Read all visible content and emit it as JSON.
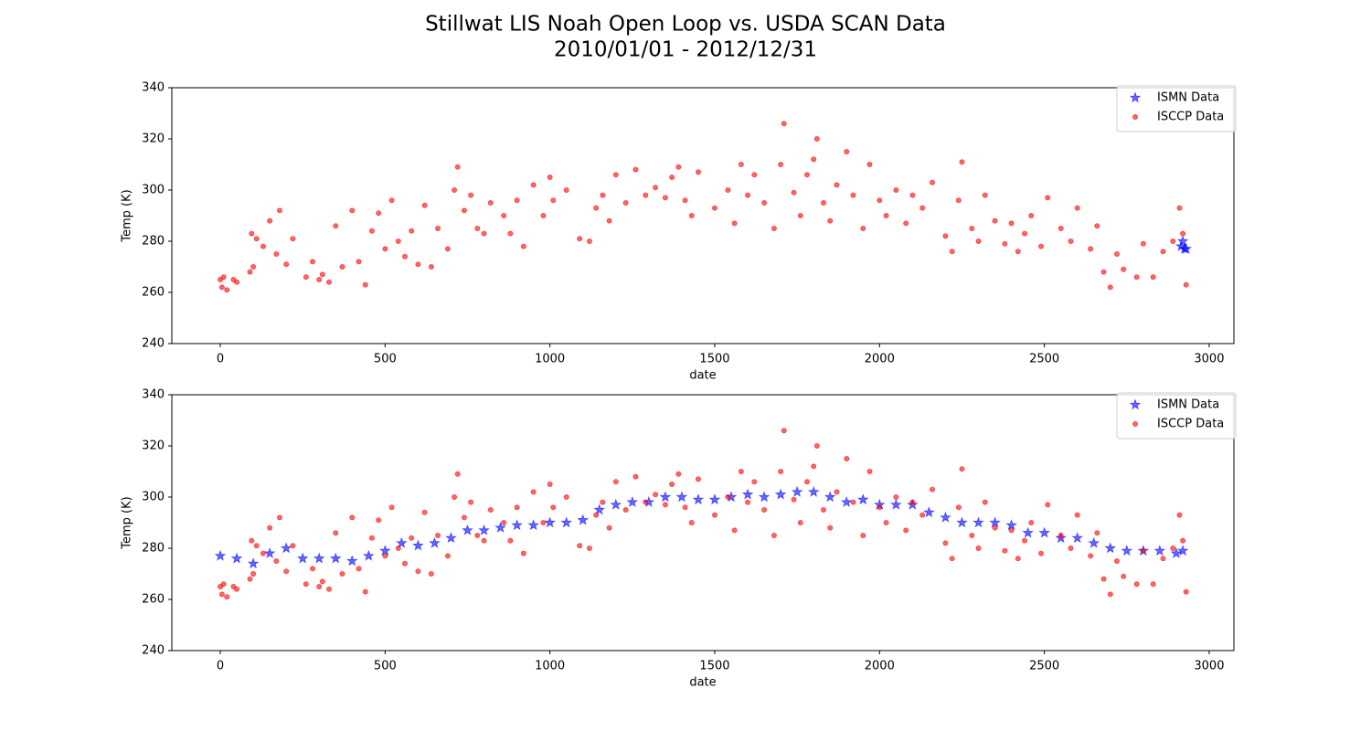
{
  "figure": {
    "title": "Stillwat LIS Noah Open Loop vs. USDA SCAN Data",
    "subtitle": "2010/01/01 - 2012/12/31"
  },
  "chart_data": [
    {
      "type": "scatter",
      "xlabel": "date",
      "ylabel": "Temp (K)",
      "xlim": [
        -147,
        3075
      ],
      "ylim": [
        240,
        340
      ],
      "xticks": [
        0,
        500,
        1000,
        1500,
        2000,
        2500,
        3000
      ],
      "yticks": [
        240,
        260,
        280,
        300,
        320,
        340
      ],
      "legend": "upper right",
      "series": [
        {
          "name": "ISMN Data",
          "color": "#0000ff",
          "alpha": 0.6,
          "marker": "star",
          "x": [
            2915,
            2920,
            2925,
            2930
          ],
          "values": [
            278,
            280,
            277,
            277
          ]
        },
        {
          "name": "ISCCP Data",
          "color": "#ff0000",
          "alpha": 0.6,
          "marker": "circle",
          "x": [
            0,
            5,
            10,
            20,
            40,
            50,
            90,
            95,
            100,
            110,
            130,
            150,
            170,
            180,
            200,
            220,
            260,
            280,
            300,
            310,
            330,
            350,
            370,
            400,
            420,
            440,
            460,
            480,
            500,
            520,
            540,
            560,
            580,
            600,
            620,
            640,
            660,
            690,
            710,
            720,
            740,
            760,
            780,
            800,
            820,
            860,
            880,
            900,
            920,
            950,
            980,
            1000,
            1010,
            1050,
            1090,
            1120,
            1140,
            1160,
            1180,
            1200,
            1230,
            1260,
            1290,
            1320,
            1350,
            1370,
            1390,
            1410,
            1430,
            1450,
            1500,
            1540,
            1560,
            1580,
            1600,
            1620,
            1650,
            1680,
            1700,
            1710,
            1740,
            1760,
            1780,
            1800,
            1810,
            1830,
            1850,
            1870,
            1900,
            1920,
            1950,
            1970,
            2000,
            2020,
            2050,
            2080,
            2100,
            2130,
            2160,
            2200,
            2220,
            2240,
            2250,
            2280,
            2300,
            2320,
            2350,
            2380,
            2400,
            2420,
            2440,
            2460,
            2490,
            2510,
            2550,
            2580,
            2600,
            2640,
            2660,
            2680,
            2700,
            2720,
            2740,
            2780,
            2800,
            2830,
            2860,
            2890,
            2910,
            2920,
            2930
          ],
          "values": [
            265,
            262,
            266,
            261,
            265,
            264,
            268,
            283,
            270,
            281,
            278,
            288,
            275,
            292,
            271,
            281,
            266,
            272,
            265,
            267,
            264,
            286,
            270,
            292,
            272,
            263,
            284,
            291,
            277,
            296,
            280,
            274,
            284,
            271,
            294,
            270,
            285,
            277,
            300,
            309,
            292,
            298,
            285,
            283,
            295,
            290,
            283,
            296,
            278,
            302,
            290,
            305,
            296,
            300,
            281,
            280,
            293,
            298,
            288,
            306,
            295,
            308,
            298,
            301,
            297,
            305,
            309,
            296,
            290,
            307,
            293,
            300,
            287,
            310,
            298,
            306,
            295,
            285,
            310,
            326,
            299,
            290,
            306,
            312,
            320,
            295,
            288,
            302,
            315,
            298,
            285,
            310,
            296,
            290,
            300,
            287,
            298,
            293,
            303,
            282,
            276,
            296,
            311,
            285,
            280,
            298,
            288,
            279,
            287,
            276,
            283,
            290,
            278,
            297,
            285,
            280,
            293,
            277,
            286,
            268,
            262,
            275,
            269,
            266,
            279,
            266,
            276,
            280,
            293,
            283,
            263
          ]
        }
      ]
    },
    {
      "type": "scatter",
      "xlabel": "date",
      "ylabel": "Temp (K)",
      "xlim": [
        -147,
        3075
      ],
      "ylim": [
        240,
        340
      ],
      "xticks": [
        0,
        500,
        1000,
        1500,
        2000,
        2500,
        3000
      ],
      "yticks": [
        240,
        260,
        280,
        300,
        320,
        340
      ],
      "legend": "upper right",
      "series": [
        {
          "name": "ISMN Data",
          "color": "#0000ff",
          "alpha": 0.6,
          "marker": "star",
          "x": [
            0,
            50,
            100,
            150,
            200,
            250,
            300,
            350,
            400,
            450,
            500,
            550,
            600,
            650,
            700,
            750,
            800,
            850,
            900,
            950,
            1000,
            1050,
            1100,
            1150,
            1200,
            1250,
            1300,
            1350,
            1400,
            1450,
            1500,
            1550,
            1600,
            1650,
            1700,
            1750,
            1800,
            1850,
            1900,
            1950,
            2000,
            2050,
            2100,
            2150,
            2200,
            2250,
            2300,
            2350,
            2400,
            2450,
            2500,
            2550,
            2600,
            2650,
            2700,
            2750,
            2800,
            2850,
            2900,
            2920
          ],
          "values": [
            277,
            276,
            274,
            278,
            280,
            276,
            276,
            276,
            275,
            277,
            279,
            282,
            281,
            282,
            284,
            287,
            287,
            288,
            289,
            289,
            290,
            290,
            291,
            295,
            297,
            298,
            298,
            300,
            300,
            299,
            299,
            300,
            301,
            300,
            301,
            302,
            302,
            300,
            298,
            299,
            297,
            297,
            297,
            294,
            292,
            290,
            290,
            290,
            289,
            286,
            286,
            284,
            284,
            282,
            280,
            279,
            279,
            279,
            278,
            279
          ]
        },
        {
          "name": "ISCCP Data",
          "color": "#ff0000",
          "alpha": 0.6,
          "marker": "circle",
          "x": [
            0,
            5,
            10,
            20,
            40,
            50,
            90,
            95,
            100,
            110,
            130,
            150,
            170,
            180,
            200,
            220,
            260,
            280,
            300,
            310,
            330,
            350,
            370,
            400,
            420,
            440,
            460,
            480,
            500,
            520,
            540,
            560,
            580,
            600,
            620,
            640,
            660,
            690,
            710,
            720,
            740,
            760,
            780,
            800,
            820,
            860,
            880,
            900,
            920,
            950,
            980,
            1000,
            1010,
            1050,
            1090,
            1120,
            1140,
            1160,
            1180,
            1200,
            1230,
            1260,
            1290,
            1320,
            1350,
            1370,
            1390,
            1410,
            1430,
            1450,
            1500,
            1540,
            1560,
            1580,
            1600,
            1620,
            1650,
            1680,
            1700,
            1710,
            1740,
            1760,
            1780,
            1800,
            1810,
            1830,
            1850,
            1870,
            1900,
            1920,
            1950,
            1970,
            2000,
            2020,
            2050,
            2080,
            2100,
            2130,
            2160,
            2200,
            2220,
            2240,
            2250,
            2280,
            2300,
            2320,
            2350,
            2380,
            2400,
            2420,
            2440,
            2460,
            2490,
            2510,
            2550,
            2580,
            2600,
            2640,
            2660,
            2680,
            2700,
            2720,
            2740,
            2780,
            2800,
            2830,
            2860,
            2890,
            2910,
            2920,
            2930
          ],
          "values": [
            265,
            262,
            266,
            261,
            265,
            264,
            268,
            283,
            270,
            281,
            278,
            288,
            275,
            292,
            271,
            281,
            266,
            272,
            265,
            267,
            264,
            286,
            270,
            292,
            272,
            263,
            284,
            291,
            277,
            296,
            280,
            274,
            284,
            271,
            294,
            270,
            285,
            277,
            300,
            309,
            292,
            298,
            285,
            283,
            295,
            290,
            283,
            296,
            278,
            302,
            290,
            305,
            296,
            300,
            281,
            280,
            293,
            298,
            288,
            306,
            295,
            308,
            298,
            301,
            297,
            305,
            309,
            296,
            290,
            307,
            293,
            300,
            287,
            310,
            298,
            306,
            295,
            285,
            310,
            326,
            299,
            290,
            306,
            312,
            320,
            295,
            288,
            302,
            315,
            298,
            285,
            310,
            296,
            290,
            300,
            287,
            298,
            293,
            303,
            282,
            276,
            296,
            311,
            285,
            280,
            298,
            288,
            279,
            287,
            276,
            283,
            290,
            278,
            297,
            285,
            280,
            293,
            277,
            286,
            268,
            262,
            275,
            269,
            266,
            279,
            266,
            276,
            280,
            293,
            283,
            263
          ]
        }
      ]
    }
  ]
}
